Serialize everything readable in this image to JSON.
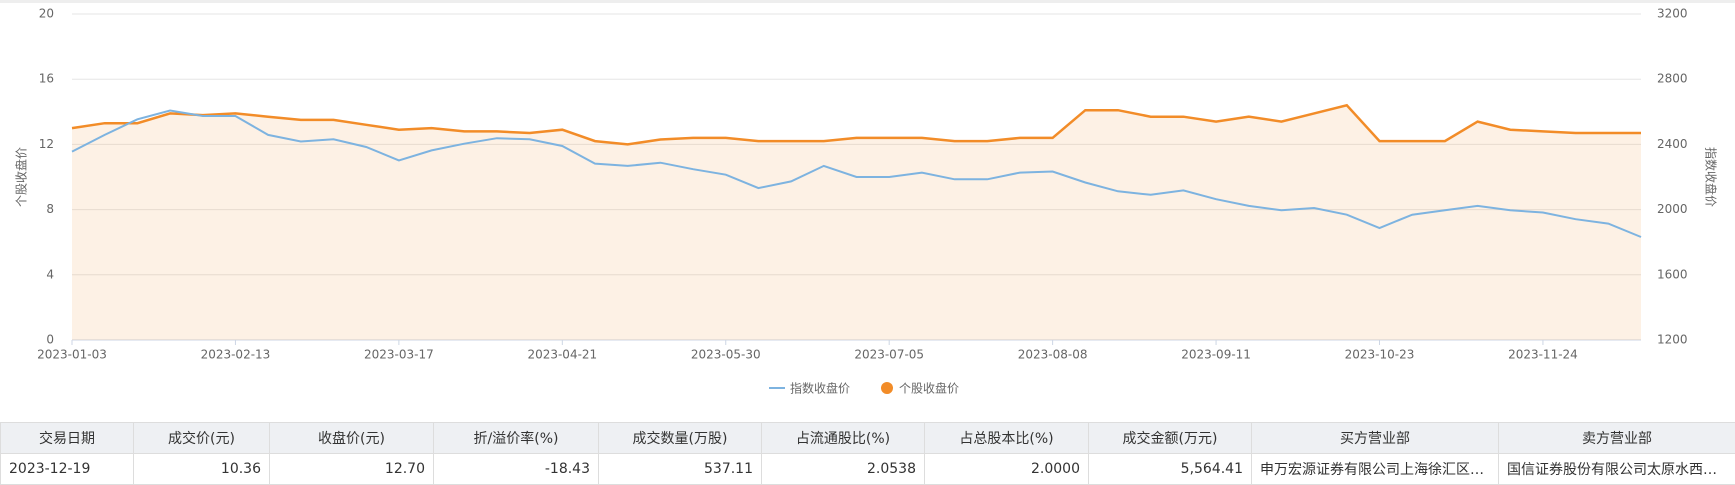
{
  "chart_data": {
    "type": "line",
    "categories": [
      "2023-01-03",
      null,
      null,
      null,
      null,
      "2023-02-13",
      null,
      null,
      null,
      null,
      "2023-03-17",
      null,
      null,
      null,
      null,
      "2023-04-21",
      null,
      null,
      null,
      null,
      "2023-05-30",
      null,
      null,
      null,
      null,
      "2023-07-05",
      null,
      null,
      null,
      null,
      "2023-08-08",
      null,
      null,
      null,
      null,
      "2023-09-11",
      null,
      null,
      null,
      null,
      "2023-10-23",
      null,
      null,
      null,
      null,
      "2023-11-24",
      null,
      null,
      null
    ],
    "series": [
      {
        "name": "指数收盘价",
        "color": "#7db3e0",
        "axis": "y2",
        "values": [
          2356,
          2458,
          2554,
          2608,
          2574,
          2574,
          2458,
          2418,
          2431,
          2384,
          2302,
          2363,
          2404,
          2438,
          2431,
          2390,
          2282,
          2268,
          2288,
          2248,
          2214,
          2132,
          2173,
          2268,
          2200,
          2200,
          2227,
          2186,
          2186,
          2227,
          2234,
          2166,
          2112,
          2091,
          2118,
          2064,
          2023,
          1996,
          2010,
          1969,
          1887,
          1969,
          1996,
          2023,
          1996,
          1982,
          1941,
          1914,
          1832
        ]
      },
      {
        "name": "个股收盘价",
        "color": "#f28c28",
        "values": [
          13.0,
          13.3,
          13.3,
          13.9,
          13.8,
          13.9,
          13.7,
          13.5,
          13.5,
          13.2,
          12.9,
          13.0,
          12.8,
          12.8,
          12.7,
          12.9,
          12.2,
          12.0,
          12.3,
          12.4,
          12.4,
          12.2,
          12.2,
          12.2,
          12.4,
          12.4,
          12.4,
          12.2,
          12.2,
          12.4,
          12.4,
          14.1,
          14.1,
          13.7,
          13.7,
          13.4,
          13.7,
          13.4,
          13.9,
          14.4,
          12.2,
          12.2,
          12.2,
          13.4,
          12.9,
          12.8,
          12.7,
          12.7,
          12.7
        ]
      }
    ],
    "y_label": "个股收盘价",
    "y2_label": "指数收盘价",
    "ylim": [
      0,
      20
    ],
    "yticks": [
      0,
      4,
      8,
      12,
      16,
      20
    ],
    "y2lim": [
      1200,
      3200
    ],
    "y2ticks": [
      1200,
      1600,
      2000,
      2400,
      2800,
      3200
    ],
    "grid": true,
    "area": true,
    "legend": "bottom"
  },
  "table": {
    "headers": [
      "交易日期",
      "成交价(元)",
      "收盘价(元)",
      "折/溢价率(%)",
      "成交数量(万股)",
      "占流通股比(%)",
      "占总股本比(%)",
      "成交金额(万元)",
      "买方营业部",
      "卖方营业部"
    ],
    "rows": [
      [
        "2023-12-19",
        "10.36",
        "12.70",
        "-18.43",
        "537.11",
        "2.0538",
        "2.0000",
        "5,564.41",
        "申万宏源证券有限公司上海徐汇区…",
        "国信证券股份有限公司太原水西…"
      ]
    ]
  }
}
